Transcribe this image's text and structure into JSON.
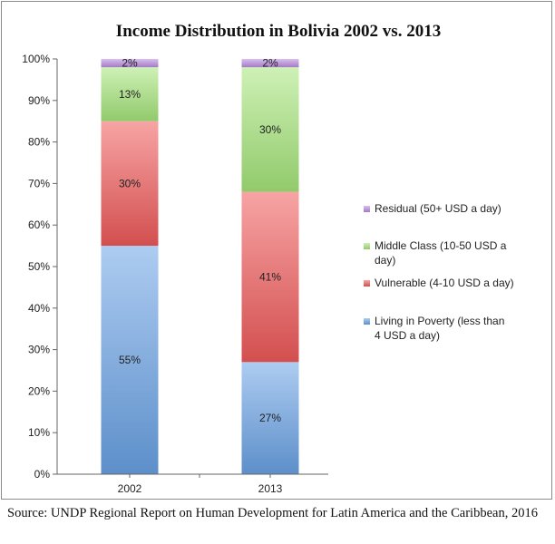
{
  "chart_data": {
    "type": "bar",
    "stacked": true,
    "title": "Income Distribution in Bolivia 2002 vs. 2013",
    "xlabel": "",
    "ylabel": "",
    "categories": [
      "2002",
      "2013"
    ],
    "ylim": [
      0,
      100
    ],
    "y_ticks": [
      "0%",
      "10%",
      "20%",
      "30%",
      "40%",
      "50%",
      "60%",
      "70%",
      "80%",
      "90%",
      "100%"
    ],
    "grid": false,
    "legend_position": "right",
    "series": [
      {
        "name": "Living in Poverty (less than 4 USD a day)",
        "values": [
          55,
          27
        ],
        "labels": [
          "55%",
          "27%"
        ],
        "color": "#6aa3e6"
      },
      {
        "name": "Vulnerable (4-10 USD a day)",
        "values": [
          30,
          41
        ],
        "labels": [
          "30%",
          "41%"
        ],
        "color": "#f05a5a"
      },
      {
        "name": "Middle Class (10-50 USD a day)",
        "values": [
          13,
          30
        ],
        "labels": [
          "13%",
          "30%"
        ],
        "color": "#a6e67a"
      },
      {
        "name": "Residual (50+ USD a day)",
        "values": [
          2,
          2
        ],
        "labels": [
          "2%",
          "2%"
        ],
        "color": "#b98ae0"
      }
    ]
  },
  "source_note": "Source: UNDP Regional Report on Human Development for Latin America and the Caribbean, 2016"
}
